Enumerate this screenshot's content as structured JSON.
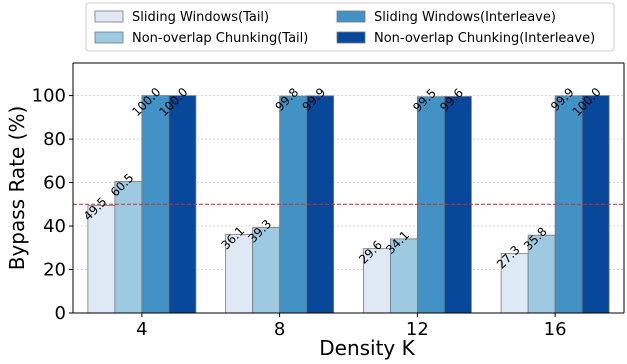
{
  "chart_data": {
    "type": "bar",
    "title": "",
    "xlabel": "Density K",
    "ylabel": "Bypass Rate (%)",
    "ylim": [
      0,
      115
    ],
    "yticks": [
      0,
      20,
      40,
      60,
      80,
      100
    ],
    "categories": [
      "4",
      "8",
      "12",
      "16"
    ],
    "grid": "horizontal dotted",
    "legend_position": "top, outside",
    "reference_line": {
      "y": 50,
      "color": "#d62728",
      "style": "dashed"
    },
    "series": [
      {
        "name": "Sliding Windows(Tail)",
        "color": "#dfe9f5",
        "values": [
          49.5,
          36.1,
          29.6,
          27.3
        ],
        "labels": [
          "49.5",
          "36.1",
          "29.6",
          "27.3"
        ]
      },
      {
        "name": "Non-overlap Chunking(Tail)",
        "color": "#9ecae1",
        "values": [
          60.5,
          39.3,
          34.1,
          35.8
        ],
        "labels": [
          "60.5",
          "39.3",
          "34.1",
          "35.8"
        ]
      },
      {
        "name": "Sliding Windows(Interleave)",
        "color": "#4292c6",
        "values": [
          100.0,
          99.8,
          99.5,
          99.9
        ],
        "labels": [
          "100.0",
          "99.8",
          "99.5",
          "99.9"
        ]
      },
      {
        "name": "Non-overlap Chunking(Interleave)",
        "color": "#08489a",
        "values": [
          100.0,
          99.9,
          99.6,
          100.0
        ],
        "labels": [
          "100.0",
          "99.9",
          "99.6",
          "100.0"
        ]
      }
    ]
  }
}
